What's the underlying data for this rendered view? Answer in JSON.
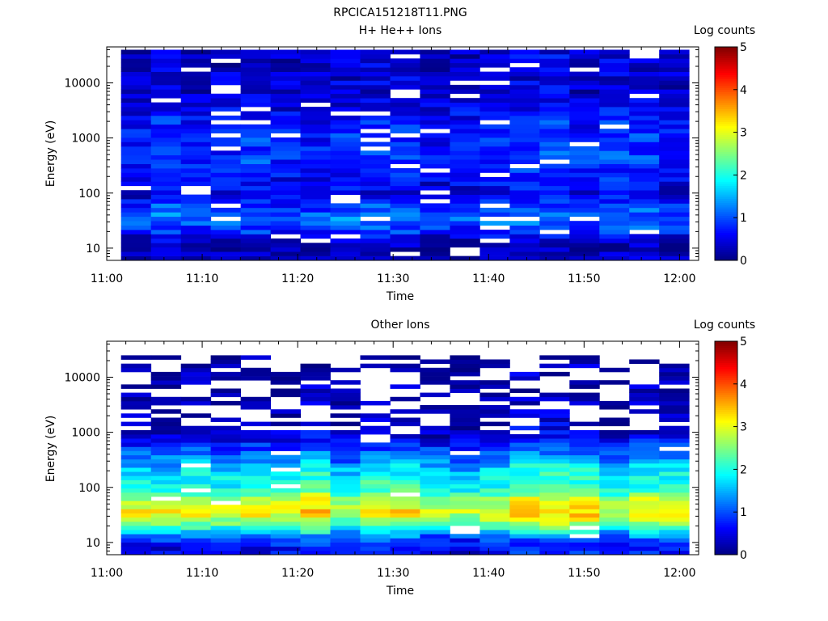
{
  "figure": {
    "title": "RPCICA151218T11.PNG"
  },
  "chart_data": [
    {
      "type": "heatmap",
      "title": "H+ He++ Ions",
      "xlabel": "Time",
      "ylabel": "Energy (eV)",
      "x_ticks": [
        "11:00",
        "11:10",
        "11:20",
        "11:30",
        "11:40",
        "11:50",
        "12:00"
      ],
      "x_range": [
        "11:00",
        "12:02"
      ],
      "y_ticks": [
        "10",
        "100",
        "1000",
        "10000"
      ],
      "y_scale": "log",
      "y_range": [
        6,
        45000
      ],
      "energy_range_eV": [
        6,
        40000
      ],
      "time_columns": 19,
      "colorbar": {
        "label": "Log counts",
        "ticks": [
          "0",
          "1",
          "2",
          "3",
          "4",
          "5"
        ],
        "range": [
          0,
          5
        ]
      },
      "profile": {
        "energy_eV": [
          8,
          12,
          20,
          35,
          60,
          100,
          200,
          400,
          800,
          1500,
          3000,
          7000,
          15000,
          30000
        ],
        "log_counts_typical": [
          0.3,
          0.2,
          0.8,
          1.2,
          0.9,
          0.5,
          0.7,
          0.9,
          0.8,
          0.8,
          0.6,
          0.4,
          0.4,
          0.4
        ]
      }
    },
    {
      "type": "heatmap",
      "title": "Other Ions",
      "xlabel": "Time",
      "ylabel": "Energy (eV)",
      "x_ticks": [
        "11:00",
        "11:10",
        "11:20",
        "11:30",
        "11:40",
        "11:50",
        "12:00"
      ],
      "x_range": [
        "11:00",
        "12:02"
      ],
      "y_ticks": [
        "10",
        "100",
        "1000",
        "10000"
      ],
      "y_scale": "log",
      "y_range": [
        6,
        45000
      ],
      "energy_range_eV": [
        6,
        25000
      ],
      "time_columns": 19,
      "colorbar": {
        "label": "Log counts",
        "ticks": [
          "0",
          "1",
          "2",
          "3",
          "4",
          "5"
        ],
        "range": [
          0,
          5
        ]
      },
      "profile": {
        "energy_eV": [
          8,
          12,
          20,
          35,
          60,
          100,
          200,
          400,
          800,
          1500,
          3000,
          7000,
          15000,
          25000
        ],
        "log_counts_typical": [
          0.6,
          1.0,
          2.3,
          3.2,
          2.8,
          2.0,
          1.8,
          1.2,
          0.5,
          0.3,
          0.2,
          0.2,
          0.2,
          0.1
        ]
      }
    }
  ]
}
